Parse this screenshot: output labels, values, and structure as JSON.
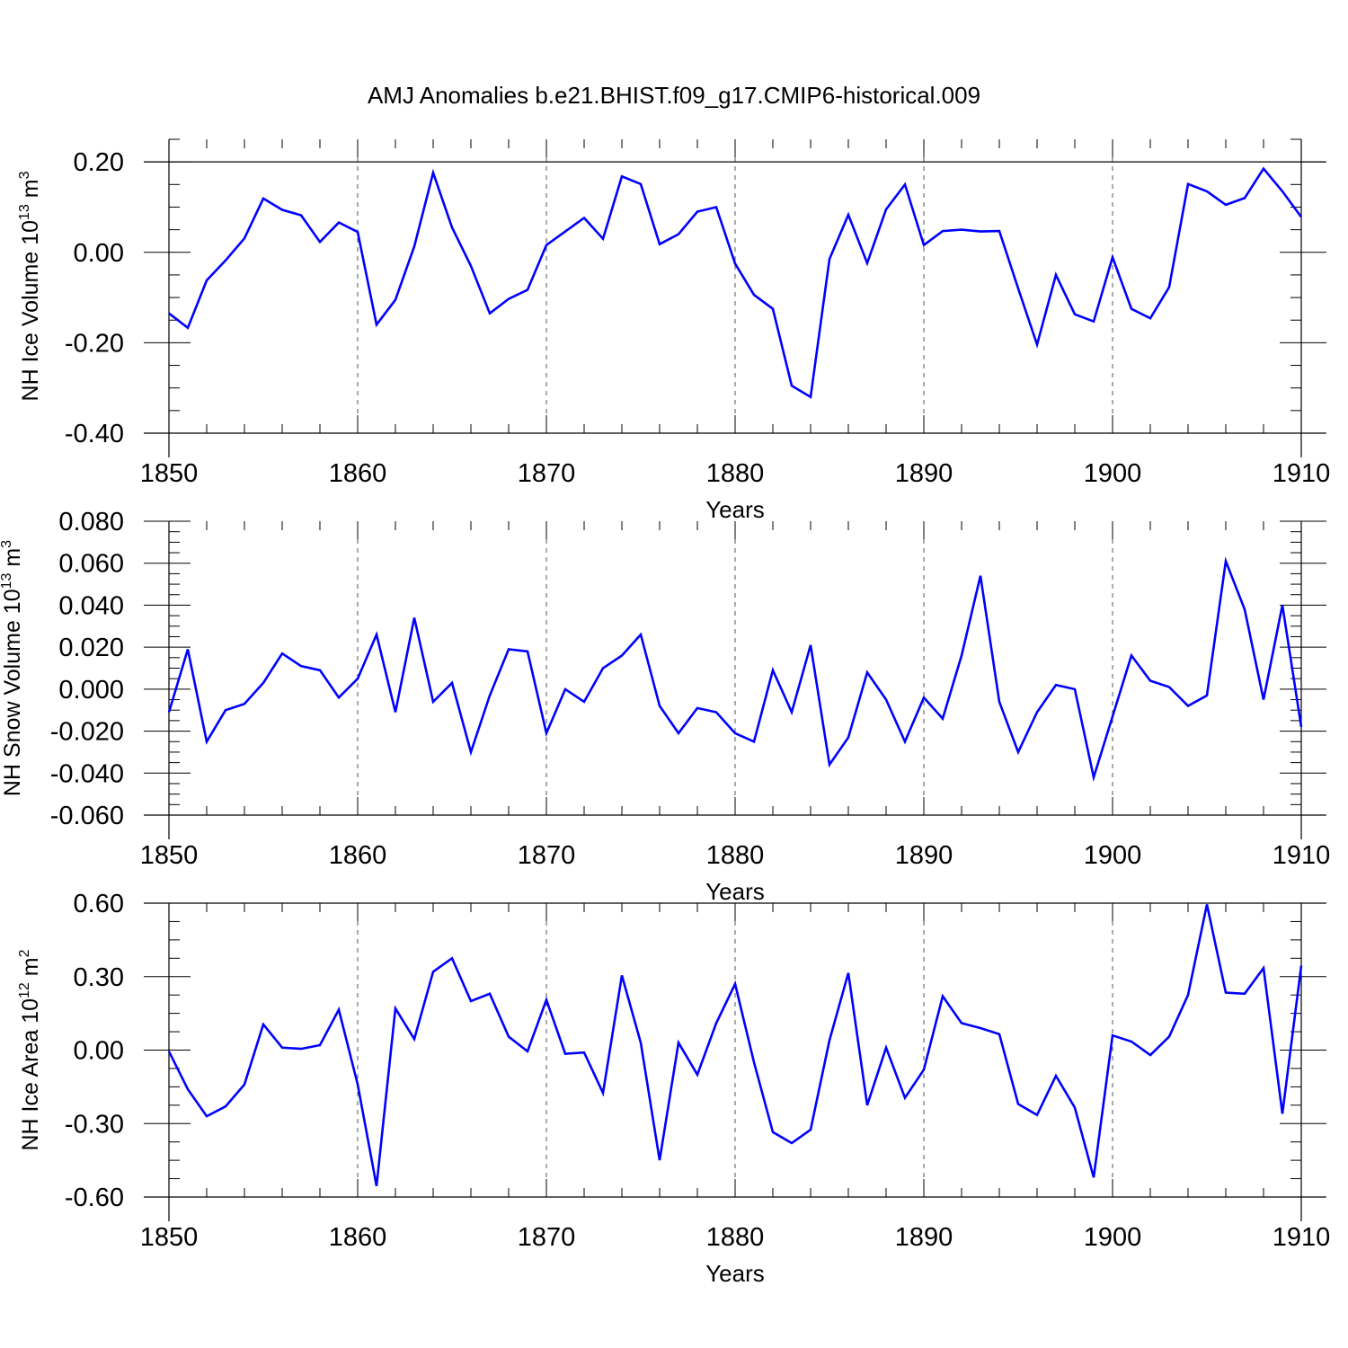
{
  "title": "AMJ Anomalies b.e21.BHIST.f09_g17.CMIP6-historical.009",
  "chart_data": [
    {
      "type": "line",
      "ylabel": "NH Ice Volume 10",
      "ylabel_exp": "13",
      "ylabel_unit": "m",
      "ylabel_unit_exp": "3",
      "xlabel": "Years",
      "xlim": [
        1850,
        1910
      ],
      "ylim": [
        -0.4,
        0.25
      ],
      "yticks": [
        -0.4,
        -0.2,
        0.0,
        0.2
      ],
      "ytick_labels": [
        "-0.40",
        "-0.20",
        "0.00",
        "0.20"
      ],
      "xticks": [
        1850,
        1860,
        1870,
        1880,
        1890,
        1900,
        1910
      ],
      "xtick_labels": [
        "1850",
        "1860",
        "1870",
        "1880",
        "1890",
        "1900",
        "1910"
      ],
      "ref_line": 0.2,
      "x": [
        1850,
        1851,
        1852,
        1853,
        1854,
        1855,
        1856,
        1857,
        1858,
        1859,
        1860,
        1861,
        1862,
        1863,
        1864,
        1865,
        1866,
        1867,
        1868,
        1869,
        1870,
        1871,
        1872,
        1873,
        1874,
        1875,
        1876,
        1877,
        1878,
        1879,
        1880,
        1881,
        1882,
        1883,
        1884,
        1885,
        1886,
        1887,
        1888,
        1889,
        1890,
        1891,
        1892,
        1893,
        1894,
        1895,
        1896,
        1897,
        1898,
        1899,
        1900,
        1901,
        1902,
        1903,
        1904,
        1905,
        1906,
        1907,
        1908,
        1909,
        1910
      ],
      "series": [
        {
          "name": "NH Ice Volume",
          "color": "#0000ff",
          "values": [
            -0.135,
            -0.167,
            -0.062,
            -0.018,
            0.031,
            0.119,
            0.094,
            0.082,
            0.023,
            0.066,
            0.045,
            -0.16,
            -0.105,
            0.013,
            0.176,
            0.055,
            -0.03,
            -0.135,
            -0.103,
            -0.083,
            0.016,
            0.046,
            0.076,
            0.03,
            0.168,
            0.151,
            0.018,
            0.04,
            0.09,
            0.1,
            -0.025,
            -0.094,
            -0.125,
            -0.295,
            -0.32,
            -0.015,
            0.083,
            -0.024,
            0.095,
            0.15,
            0.016,
            0.047,
            0.05,
            0.046,
            0.047,
            -0.08,
            -0.204,
            -0.05,
            -0.137,
            -0.153,
            -0.011,
            -0.125,
            -0.146,
            -0.077,
            0.151,
            0.135,
            0.105,
            0.12,
            0.185,
            0.135,
            0.078
          ]
        }
      ]
    },
    {
      "type": "line",
      "ylabel": "NH Snow Volume 10",
      "ylabel_exp": "13",
      "ylabel_unit": "m",
      "ylabel_unit_exp": "3",
      "xlabel": "Years",
      "xlim": [
        1850,
        1910
      ],
      "ylim": [
        -0.06,
        0.08
      ],
      "yticks": [
        -0.06,
        -0.04,
        -0.02,
        0.0,
        0.02,
        0.04,
        0.06,
        0.08
      ],
      "ytick_labels": [
        "-0.060",
        "-0.040",
        "-0.020",
        "0.000",
        "0.020",
        "0.040",
        "0.060",
        "0.080"
      ],
      "xticks": [
        1850,
        1860,
        1870,
        1880,
        1890,
        1900,
        1910
      ],
      "xtick_labels": [
        "1850",
        "1860",
        "1870",
        "1880",
        "1890",
        "1900",
        "1910"
      ],
      "ref_line": null,
      "x": [
        1850,
        1851,
        1852,
        1853,
        1854,
        1855,
        1856,
        1857,
        1858,
        1859,
        1860,
        1861,
        1862,
        1863,
        1864,
        1865,
        1866,
        1867,
        1868,
        1869,
        1870,
        1871,
        1872,
        1873,
        1874,
        1875,
        1876,
        1877,
        1878,
        1879,
        1880,
        1881,
        1882,
        1883,
        1884,
        1885,
        1886,
        1887,
        1888,
        1889,
        1890,
        1891,
        1892,
        1893,
        1894,
        1895,
        1896,
        1897,
        1898,
        1899,
        1900,
        1901,
        1902,
        1903,
        1904,
        1905,
        1906,
        1907,
        1908,
        1909,
        1910
      ],
      "series": [
        {
          "name": "NH Snow Volume",
          "color": "#0000ff",
          "values": [
            -0.011,
            0.019,
            -0.025,
            -0.01,
            -0.007,
            0.003,
            0.017,
            0.011,
            0.009,
            -0.004,
            0.005,
            0.026,
            -0.011,
            0.034,
            -0.006,
            0.003,
            -0.03,
            -0.003,
            0.019,
            0.018,
            -0.021,
            0.0,
            -0.006,
            0.01,
            0.016,
            0.026,
            -0.008,
            -0.021,
            -0.009,
            -0.011,
            -0.021,
            -0.025,
            0.009,
            -0.011,
            0.021,
            -0.036,
            -0.023,
            0.008,
            -0.005,
            -0.025,
            -0.004,
            -0.014,
            0.016,
            0.054,
            -0.006,
            -0.03,
            -0.011,
            0.002,
            0.0,
            -0.042,
            -0.013,
            0.016,
            0.004,
            0.001,
            -0.008,
            -0.003,
            0.061,
            0.038,
            -0.005,
            0.04,
            -0.018
          ]
        }
      ]
    },
    {
      "type": "line",
      "ylabel": "NH Ice Area 10",
      "ylabel_exp": "12",
      "ylabel_unit": "m",
      "ylabel_unit_exp": "2",
      "xlabel": "Years",
      "xlim": [
        1850,
        1910
      ],
      "ylim": [
        -0.6,
        0.6
      ],
      "yticks": [
        -0.6,
        -0.3,
        0.0,
        0.3,
        0.6
      ],
      "ytick_labels": [
        "-0.60",
        "-0.30",
        "0.00",
        "0.30",
        "0.60"
      ],
      "xticks": [
        1850,
        1860,
        1870,
        1880,
        1890,
        1900,
        1910
      ],
      "xtick_labels": [
        "1850",
        "1860",
        "1870",
        "1880",
        "1890",
        "1900",
        "1910"
      ],
      "ref_line": 0.6,
      "x": [
        1850,
        1851,
        1852,
        1853,
        1854,
        1855,
        1856,
        1857,
        1858,
        1859,
        1860,
        1861,
        1862,
        1863,
        1864,
        1865,
        1866,
        1867,
        1868,
        1869,
        1870,
        1871,
        1872,
        1873,
        1874,
        1875,
        1876,
        1877,
        1878,
        1879,
        1880,
        1881,
        1882,
        1883,
        1884,
        1885,
        1886,
        1887,
        1888,
        1889,
        1890,
        1891,
        1892,
        1893,
        1894,
        1895,
        1896,
        1897,
        1898,
        1899,
        1900,
        1901,
        1902,
        1903,
        1904,
        1905,
        1906,
        1907,
        1908,
        1909,
        1910
      ],
      "series": [
        {
          "name": "NH Ice Area",
          "color": "#0000ff",
          "values": [
            -0.005,
            -0.16,
            -0.27,
            -0.23,
            -0.14,
            0.105,
            0.01,
            0.005,
            0.02,
            0.165,
            -0.14,
            -0.555,
            0.17,
            0.045,
            0.32,
            0.375,
            0.2,
            0.23,
            0.055,
            -0.005,
            0.205,
            -0.015,
            -0.01,
            -0.175,
            0.305,
            0.03,
            -0.45,
            0.03,
            -0.1,
            0.11,
            0.27,
            -0.05,
            -0.335,
            -0.38,
            -0.325,
            0.04,
            0.315,
            -0.225,
            0.01,
            -0.195,
            -0.08,
            0.22,
            0.11,
            0.09,
            0.065,
            -0.22,
            -0.265,
            -0.105,
            -0.235,
            -0.52,
            0.06,
            0.035,
            -0.02,
            0.055,
            0.225,
            0.595,
            0.235,
            0.23,
            0.335,
            -0.26,
            0.345
          ]
        }
      ]
    }
  ]
}
